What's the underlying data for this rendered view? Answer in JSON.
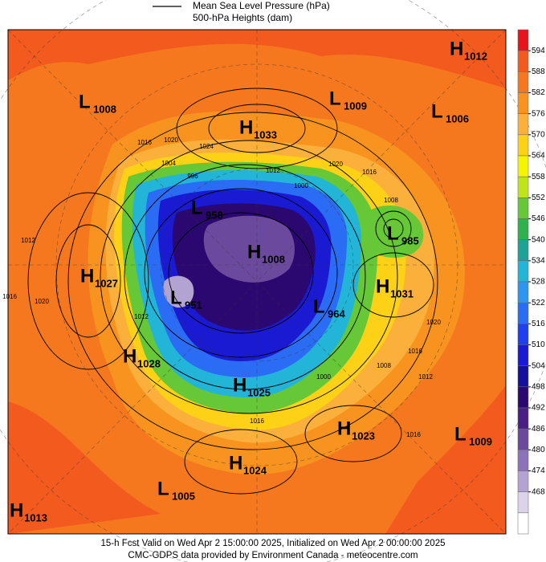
{
  "legend": {
    "line_label": "Mean Sea Level Pressure (hPa)",
    "fill_label": "500-hPa Heights (dam)"
  },
  "colorbar": {
    "levels": [
      594,
      588,
      582,
      576,
      570,
      564,
      558,
      552,
      546,
      540,
      534,
      528,
      522,
      516,
      510,
      504,
      498,
      492,
      486,
      480,
      474,
      468
    ],
    "colors": [
      "#e8141c",
      "#f25a1e",
      "#f5781f",
      "#f7931e",
      "#fbb03b",
      "#fcd116",
      "#f5f500",
      "#bfe51a",
      "#66c837",
      "#2fb24c",
      "#1ca396",
      "#22b5d8",
      "#2d96f0",
      "#2b6cf5",
      "#1f3ff0",
      "#1a1ad2",
      "#150f9e",
      "#2b0870",
      "#4a1f85",
      "#6b4a9e",
      "#8c72b8",
      "#b3a3d2",
      "#dcd3ea",
      "#ffffff"
    ]
  },
  "centers": [
    {
      "type": "H",
      "value": 1012
    },
    {
      "type": "L",
      "value": 1008
    },
    {
      "type": "L",
      "value": 1009
    },
    {
      "type": "L",
      "value": 1006
    },
    {
      "type": "H",
      "value": 1033
    },
    {
      "type": "L",
      "value": 958
    },
    {
      "type": "L",
      "value": 985
    },
    {
      "type": "H",
      "value": 1008
    },
    {
      "type": "H",
      "value": 1027
    },
    {
      "type": "L",
      "value": 951
    },
    {
      "type": "H",
      "value": 1031
    },
    {
      "type": "L",
      "value": 964
    },
    {
      "type": "H",
      "value": 1028
    },
    {
      "type": "H",
      "value": 1025
    },
    {
      "type": "H",
      "value": 1023
    },
    {
      "type": "L",
      "value": 1009
    },
    {
      "type": "H",
      "value": 1024
    },
    {
      "type": "L",
      "value": 1005
    },
    {
      "type": "H",
      "value": 1013
    }
  ],
  "contour_labels": [
    1016,
    1020,
    1024,
    1004,
    996,
    1012,
    1020,
    1016,
    1000,
    1008,
    1012,
    1020,
    1016,
    1012,
    1020,
    1016,
    1008,
    1012,
    1000,
    1016,
    1016
  ],
  "footer": [
    "15-h Fcst Valid on Wed Apr  2 15:00:00 2025, Initialized on Wed Apr  2 00:00:00 2025",
    "CMC-GDPS data provided by Environment Canada - meteocentre.com"
  ]
}
